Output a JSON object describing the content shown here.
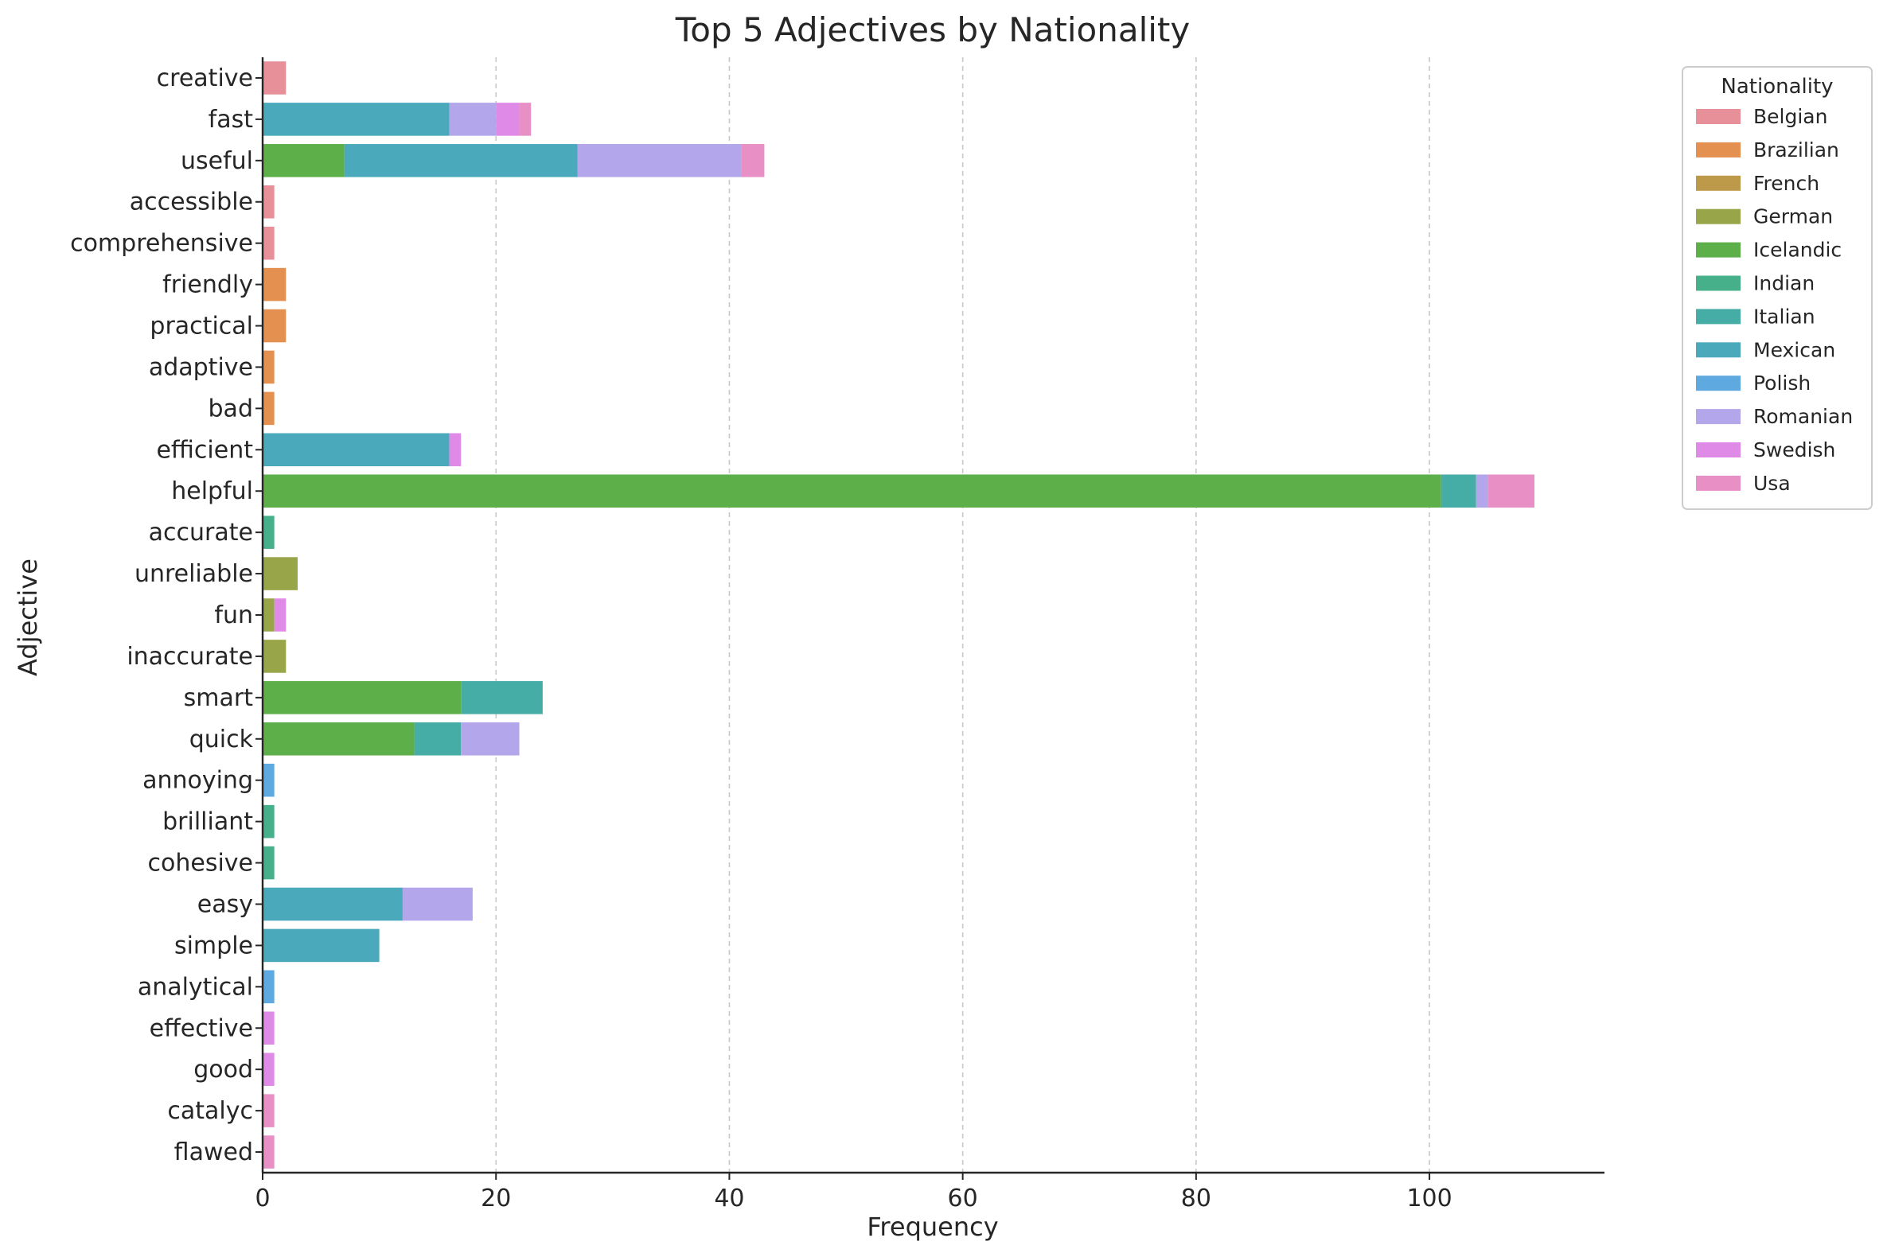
{
  "chart_data": {
    "type": "bar",
    "orientation": "horizontal",
    "stacked": true,
    "title": "Top 5 Adjectives by Nationality",
    "xlabel": "Frequency",
    "ylabel": "Adjective",
    "xlim": [
      0,
      115
    ],
    "xticks": [
      0,
      20,
      40,
      60,
      80,
      100
    ],
    "grid": "x-dashed",
    "legend": {
      "title": "Nationality",
      "placement": "outside-top-right"
    },
    "categories": [
      "creative",
      "fast",
      "useful",
      "accessible",
      "comprehensive",
      "friendly",
      "practical",
      "adaptive",
      "bad",
      "efficient",
      "helpful",
      "accurate",
      "unreliable",
      "fun",
      "inaccurate",
      "smart",
      "quick",
      "annoying",
      "brilliant",
      "cohesive",
      "easy",
      "simple",
      "analytical",
      "effective",
      "good",
      "catalyc",
      "flawed"
    ],
    "series": [
      {
        "name": "Belgian",
        "color": "#e8909a",
        "values": [
          2,
          0,
          0,
          1,
          1,
          0,
          0,
          0,
          0,
          0,
          0,
          0,
          0,
          0,
          0,
          0,
          0,
          0,
          0,
          0,
          0,
          0,
          0,
          0,
          0,
          0,
          0
        ]
      },
      {
        "name": "Brazilian",
        "color": "#e49050",
        "values": [
          0,
          0,
          0,
          0,
          0,
          2,
          2,
          1,
          1,
          0,
          0,
          0,
          0,
          0,
          0,
          0,
          0,
          0,
          0,
          0,
          0,
          0,
          0,
          0,
          0,
          0,
          0
        ]
      },
      {
        "name": "French",
        "color": "#bc9a49",
        "values": [
          0,
          0,
          0,
          0,
          0,
          0,
          0,
          0,
          0,
          0,
          0,
          0,
          0,
          0,
          0,
          0,
          0,
          0,
          0,
          0,
          0,
          0,
          0,
          0,
          0,
          0,
          0
        ]
      },
      {
        "name": "German",
        "color": "#98a548",
        "values": [
          0,
          0,
          0,
          0,
          0,
          0,
          0,
          0,
          0,
          0,
          0,
          0,
          3,
          1,
          2,
          0,
          0,
          0,
          0,
          0,
          0,
          0,
          0,
          0,
          0,
          0,
          0
        ]
      },
      {
        "name": "Icelandic",
        "color": "#5daf4a",
        "values": [
          0,
          0,
          7,
          0,
          0,
          0,
          0,
          0,
          0,
          0,
          101,
          0,
          0,
          0,
          0,
          17,
          13,
          0,
          0,
          0,
          0,
          0,
          0,
          0,
          0,
          0,
          0
        ]
      },
      {
        "name": "Indian",
        "color": "#45b08a",
        "values": [
          0,
          0,
          0,
          0,
          0,
          0,
          0,
          0,
          0,
          0,
          0,
          1,
          0,
          0,
          0,
          0,
          0,
          0,
          1,
          1,
          0,
          0,
          0,
          0,
          0,
          0,
          0
        ]
      },
      {
        "name": "Italian",
        "color": "#45ada6",
        "values": [
          0,
          0,
          0,
          0,
          0,
          0,
          0,
          0,
          0,
          0,
          3,
          0,
          0,
          0,
          0,
          7,
          4,
          0,
          0,
          0,
          0,
          0,
          0,
          0,
          0,
          0,
          0
        ]
      },
      {
        "name": "Mexican",
        "color": "#4aaabc",
        "values": [
          0,
          16,
          20,
          0,
          0,
          0,
          0,
          0,
          0,
          16,
          0,
          0,
          0,
          0,
          0,
          0,
          0,
          0,
          0,
          0,
          12,
          10,
          0,
          0,
          0,
          0,
          0
        ]
      },
      {
        "name": "Polish",
        "color": "#5ea9e0",
        "values": [
          0,
          0,
          0,
          0,
          0,
          0,
          0,
          0,
          0,
          0,
          0,
          0,
          0,
          0,
          0,
          0,
          0,
          1,
          0,
          0,
          0,
          0,
          1,
          0,
          0,
          0,
          0
        ]
      },
      {
        "name": "Romanian",
        "color": "#b4a6ea",
        "values": [
          0,
          4,
          14,
          0,
          0,
          0,
          0,
          0,
          0,
          0,
          1,
          0,
          0,
          0,
          0,
          0,
          5,
          0,
          0,
          0,
          6,
          0,
          0,
          0,
          0,
          0,
          0
        ]
      },
      {
        "name": "Swedish",
        "color": "#e08ae8",
        "values": [
          0,
          2,
          0,
          0,
          0,
          0,
          0,
          0,
          0,
          1,
          0,
          0,
          0,
          1,
          0,
          0,
          0,
          0,
          0,
          0,
          0,
          0,
          0,
          1,
          1,
          0,
          0
        ]
      },
      {
        "name": "Usa",
        "color": "#e890c6",
        "values": [
          0,
          1,
          2,
          0,
          0,
          0,
          0,
          0,
          0,
          0,
          4,
          0,
          0,
          0,
          0,
          0,
          0,
          0,
          0,
          0,
          0,
          0,
          0,
          0,
          0,
          1,
          1
        ]
      }
    ]
  }
}
